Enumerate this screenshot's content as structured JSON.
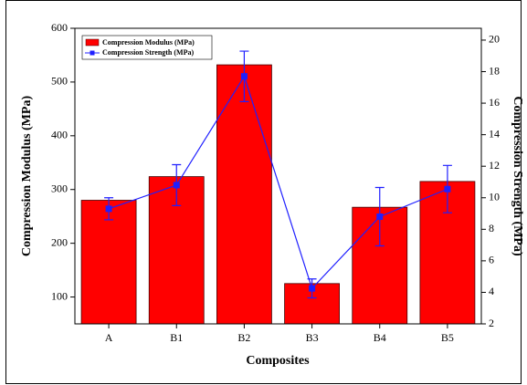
{
  "chart_data": {
    "type": "bar-line",
    "categories": [
      "A",
      "B1",
      "B2",
      "B3",
      "B4",
      "B5"
    ],
    "x_label": "Composites",
    "y_label": "Compression Modulus (MPa)",
    "y2_label": "Compression Strength (MPa)",
    "ylim": [
      50,
      600
    ],
    "yticks": [
      100,
      200,
      300,
      400,
      500,
      600
    ],
    "y2lim": [
      2,
      20.75
    ],
    "y2ticks": [
      2,
      4,
      6,
      8,
      10,
      12,
      14,
      16,
      18,
      20
    ],
    "legend": "top-left",
    "series": [
      {
        "name": "Compression Modulus (MPa)",
        "type": "bar",
        "color": "#ff0000",
        "values": [
          280,
          324,
          532,
          125,
          267,
          315
        ]
      },
      {
        "name": "Compression Strength (MPa)",
        "type": "line",
        "axis": "y2",
        "color": "#1f1fff",
        "values": [
          9.3,
          10.8,
          17.7,
          4.25,
          8.8,
          10.55
        ],
        "errors": [
          0.7,
          1.3,
          1.6,
          0.6,
          1.85,
          1.5
        ]
      }
    ]
  }
}
